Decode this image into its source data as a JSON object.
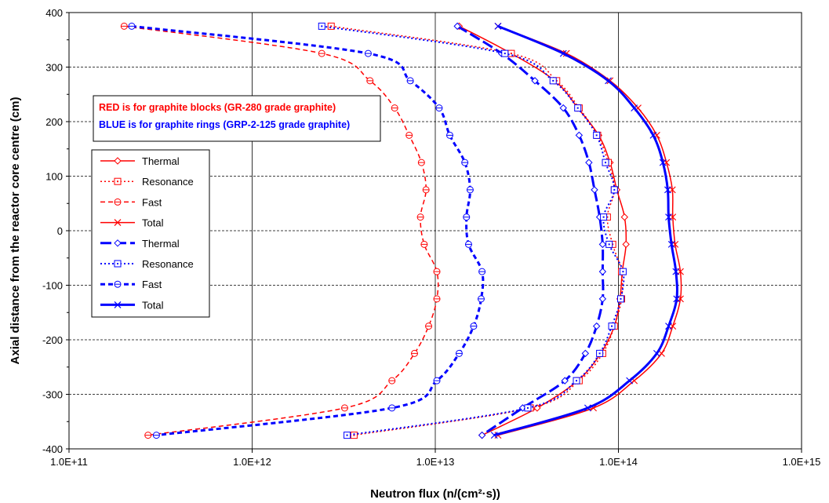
{
  "chart_data": {
    "type": "line",
    "xlabel": "Neutron flux (n/(cm²·s))",
    "ylabel": "Axial distance from the reactor core centre (cm)",
    "xscale": "log",
    "xlim": [
      100000000000.0,
      1000000000000000.0
    ],
    "ylim": [
      -400,
      400
    ],
    "x_ticks": [
      "1.0E+11",
      "1.0E+12",
      "1.0E+13",
      "1.0E+14",
      "1.0E+15"
    ],
    "y_ticks": [
      "400",
      "300",
      "200",
      "100",
      "0",
      "-100",
      "-200",
      "-300",
      "-400"
    ],
    "grid": "horizontal dashed, vertical solid at decades",
    "legend_position": "left",
    "annotations": [
      {
        "text": "RED is for graphite blocks (GR-280 grade graphite)",
        "color": "#ff0000"
      },
      {
        "text": "BLUE is for graphite rings (GRP-2-125 grade graphite)",
        "color": "#0000ff"
      }
    ],
    "y": [
      375,
      325,
      275,
      225,
      175,
      125,
      75,
      25,
      -25,
      -75,
      -125,
      -175,
      -225,
      -275,
      -325,
      -375
    ],
    "series": [
      {
        "name": "Thermal",
        "color": "#ff0000",
        "style": "solid",
        "marker": "diamond",
        "width": 1.5,
        "x": [
          13500000000000.0,
          26000000000000.0,
          45000000000000.0,
          60000000000000.0,
          78000000000000.0,
          90000000000000.0,
          98000000000000.0,
          108000000000000.0,
          110000000000000.0,
          105000000000000.0,
          102000000000000.0,
          95000000000000.0,
          80000000000000.0,
          60000000000000.0,
          36000000000000.0,
          18000000000000.0
        ]
      },
      {
        "name": "Resonance",
        "color": "#ff0000",
        "style": "dotted",
        "marker": "square",
        "width": 1.5,
        "x": [
          2700000000000.0,
          26000000000000.0,
          46000000000000.0,
          61000000000000.0,
          77000000000000.0,
          88000000000000.0,
          95000000000000.0,
          87000000000000.0,
          93000000000000.0,
          104000000000000.0,
          104000000000000.0,
          95000000000000.0,
          82000000000000.0,
          61000000000000.0,
          33000000000000.0,
          3600000000000.0
        ]
      },
      {
        "name": "Fast",
        "color": "#ff0000",
        "style": "dashed",
        "marker": "circle",
        "width": 1.5,
        "x": [
          200000000000.0,
          2400000000000.0,
          4400000000000.0,
          6000000000000.0,
          7200000000000.0,
          8400000000000.0,
          8900000000000.0,
          8300000000000.0,
          8700000000000.0,
          10200000000000.0,
          10200000000000.0,
          9200000000000.0,
          7700000000000.0,
          5800000000000.0,
          3200000000000.0,
          270000000000.0
        ]
      },
      {
        "name": "Total",
        "color": "#ff0000",
        "style": "solid",
        "marker": "x",
        "width": 1.5,
        "x": [
          22000000000000.0,
          52000000000000.0,
          90000000000000.0,
          128000000000000.0,
          162000000000000.0,
          183000000000000.0,
          197000000000000.0,
          198000000000000.0,
          204000000000000.0,
          218000000000000.0,
          218000000000000.0,
          198000000000000.0,
          172000000000000.0,
          122000000000000.0,
          73000000000000.0,
          22000000000000.0
        ]
      },
      {
        "name": "Thermal",
        "color": "#0000ff",
        "style": "longdash",
        "marker": "diamond",
        "width": 3,
        "x": [
          13200000000000.0,
          23000000000000.0,
          35000000000000.0,
          50000000000000.0,
          61000000000000.0,
          69000000000000.0,
          74000000000000.0,
          79000000000000.0,
          82000000000000.0,
          82000000000000.0,
          82000000000000.0,
          76000000000000.0,
          66000000000000.0,
          51000000000000.0,
          30000000000000.0,
          18000000000000.0
        ]
      },
      {
        "name": "Resonance",
        "color": "#0000ff",
        "style": "dotted",
        "marker": "square",
        "width": 2,
        "x": [
          2400000000000.0,
          24000000000000.0,
          44000000000000.0,
          60000000000000.0,
          76000000000000.0,
          85000000000000.0,
          95000000000000.0,
          83000000000000.0,
          89000000000000.0,
          106000000000000.0,
          103000000000000.0,
          92000000000000.0,
          79000000000000.0,
          59000000000000.0,
          32000000000000.0,
          3300000000000.0
        ]
      },
      {
        "name": "Fast",
        "color": "#0000ff",
        "style": "dashed",
        "marker": "circle",
        "width": 3,
        "x": [
          220000000000.0,
          4300000000000.0,
          7300000000000.0,
          10500000000000.0,
          12000000000000.0,
          14500000000000.0,
          15500000000000.0,
          14800000000000.0,
          15200000000000.0,
          18000000000000.0,
          17800000000000.0,
          16200000000000.0,
          13500000000000.0,
          10200000000000.0,
          5800000000000.0,
          300000000000.0
        ]
      },
      {
        "name": "Total",
        "color": "#0000ff",
        "style": "solid",
        "marker": "x",
        "width": 3,
        "x": [
          22000000000000.0,
          50000000000000.0,
          88000000000000.0,
          122000000000000.0,
          155000000000000.0,
          175000000000000.0,
          186000000000000.0,
          188000000000000.0,
          195000000000000.0,
          206000000000000.0,
          208000000000000.0,
          188000000000000.0,
          162000000000000.0,
          115000000000000.0,
          68000000000000.0,
          21000000000000.0
        ]
      }
    ]
  }
}
